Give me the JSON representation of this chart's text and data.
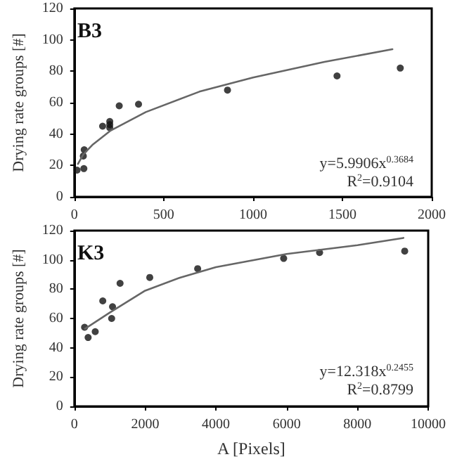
{
  "chart_data": [
    {
      "type": "scatter",
      "title": "B3",
      "ylabel": "Drying rate groups [#]",
      "xlim": [
        0,
        2000
      ],
      "xticks": [
        0,
        500,
        1000,
        1500,
        2000
      ],
      "ylim": [
        0,
        120
      ],
      "yticks": [
        0,
        20,
        40,
        60,
        80,
        100,
        120
      ],
      "grid": false,
      "annotations": [
        "y=5.9906x$^{0.3684}$",
        "R$^{2}$=0.9104"
      ],
      "series": [
        {
          "color": "#111111",
          "marker": "circle",
          "x": [
            15,
            53,
            50,
            55,
            158,
            198,
            198,
            198,
            251,
            359,
            857,
            1470,
            1824
          ],
          "values": [
            17,
            18,
            26,
            30,
            45,
            48,
            46,
            44,
            58,
            59,
            68,
            77,
            82
          ]
        },
        {
          "type": "line",
          "color": "#666666",
          "marker": "none",
          "x": [
            20,
            50,
            100,
            200,
            400,
            700,
            1000,
            1400,
            1780
          ],
          "values": [
            21,
            27,
            33,
            42,
            54,
            67,
            76,
            86,
            94
          ]
        }
      ]
    },
    {
      "type": "scatter",
      "title": "K3",
      "xlabel": "A [Pixels]",
      "ylabel": "Drying rate groups [#]",
      "xlim": [
        0,
        10000
      ],
      "xticks": [
        0,
        2000,
        4000,
        6000,
        8000,
        10000
      ],
      "ylim": [
        0,
        120
      ],
      "yticks": [
        0,
        20,
        40,
        60,
        80,
        100,
        120
      ],
      "grid": false,
      "annotations": [
        "y=12.318x$^{0.2455}$",
        "R$^{2}$=0.8799"
      ],
      "series": [
        {
          "color": "#111111",
          "marker": "circle",
          "x": [
            288,
            388,
            589,
            802,
            1053,
            1078,
            1291,
            2130,
            3484,
            5915,
            6930,
            9336
          ],
          "values": [
            54,
            47,
            51,
            72,
            60,
            68,
            84,
            88,
            94,
            101,
            105,
            106
          ]
        },
        {
          "type": "line",
          "color": "#666666",
          "marker": "none",
          "x": [
            300,
            1000,
            2000,
            3000,
            4000,
            6000,
            8000,
            9300
          ],
          "values": [
            53,
            64,
            79,
            88,
            95,
            104,
            110,
            115
          ]
        }
      ]
    }
  ]
}
